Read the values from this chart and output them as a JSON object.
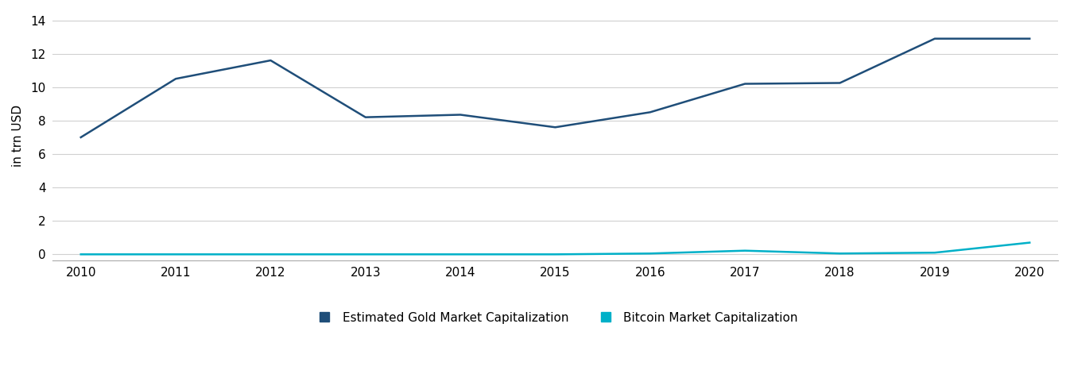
{
  "years": [
    2010,
    2011,
    2012,
    2013,
    2014,
    2015,
    2016,
    2017,
    2018,
    2019,
    2020
  ],
  "gold": [
    7.0,
    10.5,
    11.6,
    8.2,
    8.35,
    7.6,
    8.5,
    10.2,
    10.25,
    12.9,
    12.9
  ],
  "bitcoin": [
    0.0,
    0.0,
    0.0,
    0.0,
    0.0,
    0.0,
    0.05,
    0.22,
    0.05,
    0.1,
    0.7
  ],
  "gold_color": "#1f4e79",
  "bitcoin_color": "#00b0c8",
  "gold_label": "Estimated Gold Market Capitalization",
  "bitcoin_label": "Bitcoin Market Capitalization",
  "ylabel": "in trn USD",
  "ylim": [
    -0.35,
    14.5
  ],
  "yticks": [
    0,
    2,
    4,
    6,
    8,
    10,
    12,
    14
  ],
  "xlim": [
    2009.7,
    2020.3
  ],
  "xticks": [
    2010,
    2011,
    2012,
    2013,
    2014,
    2015,
    2016,
    2017,
    2018,
    2019,
    2020
  ],
  "background_color": "#ffffff",
  "grid_color": "#d0d0d0",
  "line_width": 1.8,
  "legend_marker": "s",
  "legend_fontsize": 11,
  "ylabel_fontsize": 11,
  "tick_fontsize": 11
}
